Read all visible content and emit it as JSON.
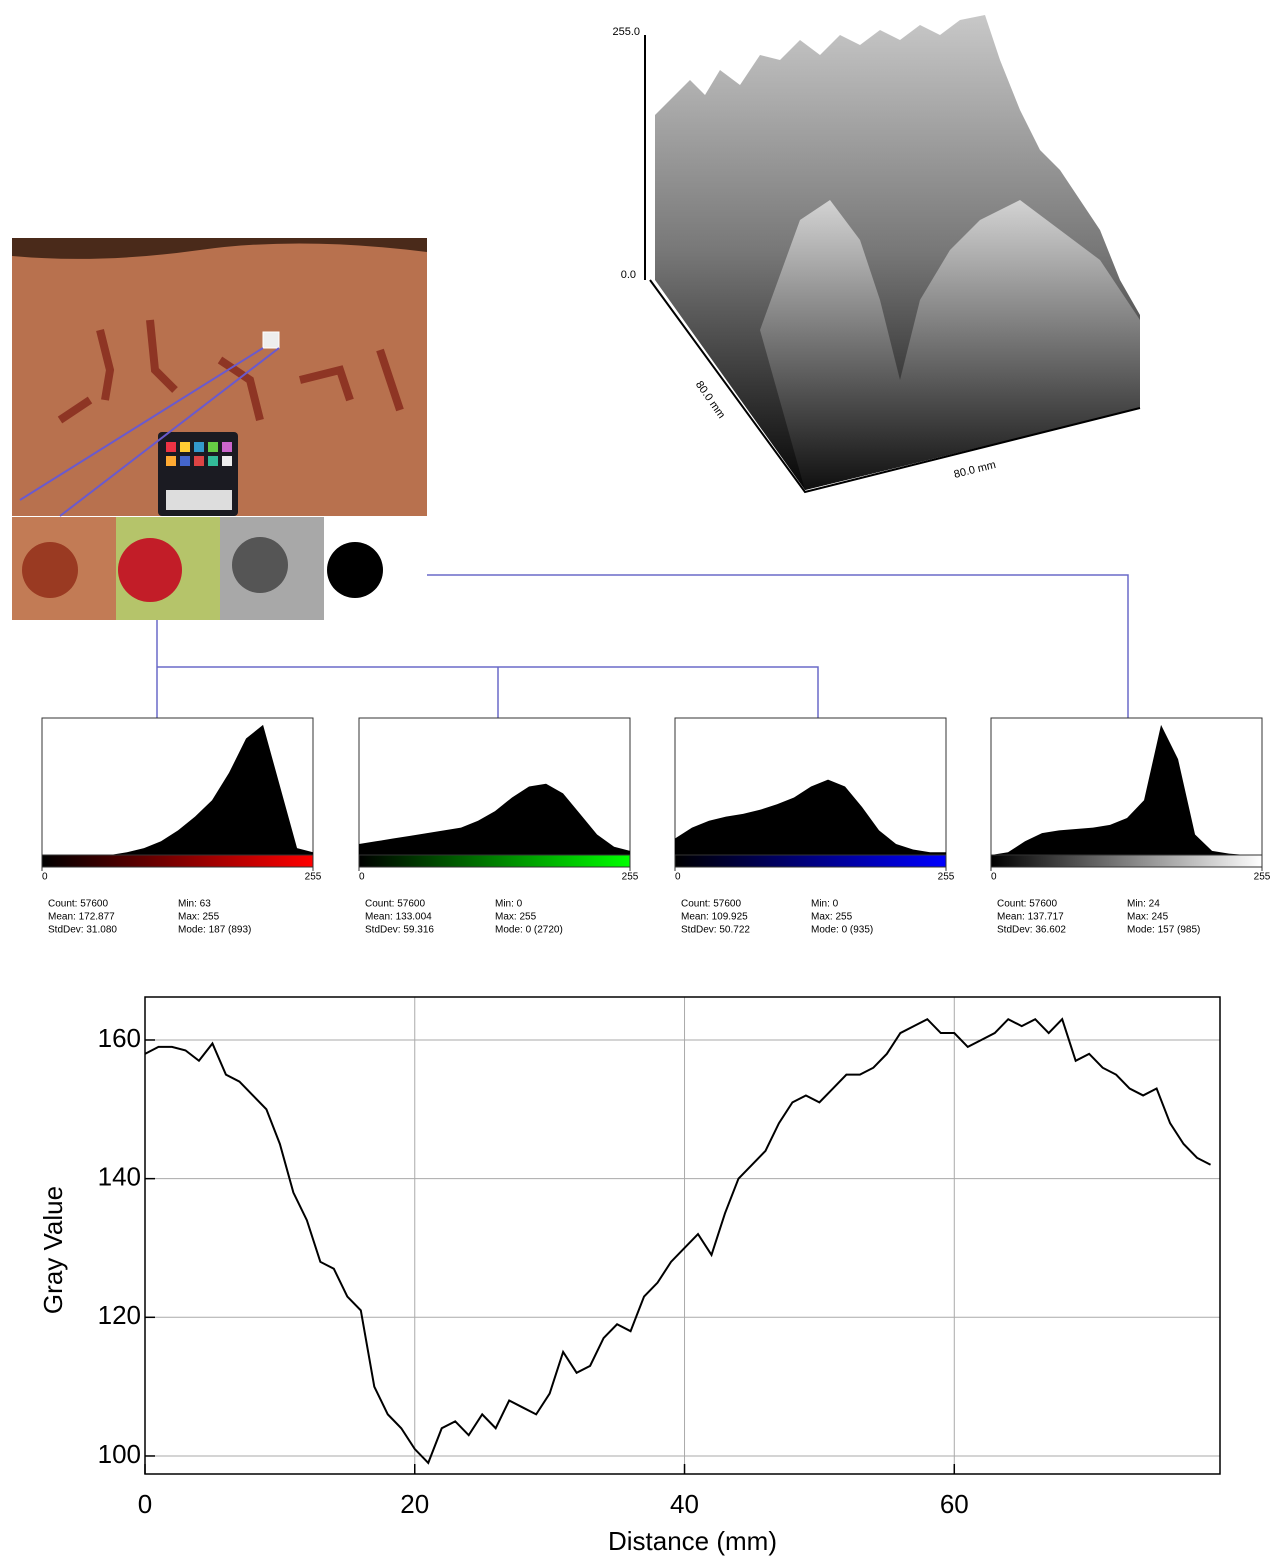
{
  "surface_plot": {
    "z_top": "255.0",
    "z_bottom": "0.0",
    "depth_label": "80.0 mm",
    "width_label": "80.0 mm"
  },
  "chart_data": [
    {
      "type": "area",
      "color": "#ff0000",
      "x": [
        0,
        16,
        32,
        48,
        64,
        80,
        96,
        112,
        128,
        144,
        160,
        176,
        192,
        208,
        224,
        240,
        255
      ],
      "values": [
        0,
        0,
        0,
        0,
        0,
        2,
        5,
        10,
        18,
        28,
        40,
        60,
        85,
        95,
        50,
        5,
        2
      ],
      "xlim": [
        0,
        255
      ],
      "xticks": [
        0,
        255
      ],
      "ylim": [
        0,
        100
      ],
      "stats": [
        "Count: 57600",
        "Mean: 172.877",
        "StdDev: 31.080",
        "Min: 63",
        "Max: 255",
        "Mode: 187 (893)"
      ]
    },
    {
      "type": "area",
      "color": "#00ff00",
      "x": [
        0,
        16,
        32,
        48,
        64,
        80,
        96,
        112,
        128,
        144,
        160,
        176,
        192,
        208,
        224,
        240,
        255
      ],
      "values": [
        8,
        10,
        12,
        14,
        16,
        18,
        20,
        25,
        32,
        42,
        50,
        52,
        45,
        30,
        15,
        6,
        3
      ],
      "xlim": [
        0,
        255
      ],
      "xticks": [
        0,
        255
      ],
      "ylim": [
        0,
        100
      ],
      "stats": [
        "Count: 57600",
        "Mean: 133.004",
        "StdDev: 59.316",
        "Min: 0",
        "Max: 255",
        "Mode: 0 (2720)"
      ]
    },
    {
      "type": "area",
      "color": "#0000ff",
      "x": [
        0,
        16,
        32,
        48,
        64,
        80,
        96,
        112,
        128,
        144,
        160,
        176,
        192,
        208,
        224,
        240,
        255
      ],
      "values": [
        12,
        20,
        25,
        28,
        30,
        33,
        37,
        42,
        50,
        55,
        50,
        35,
        18,
        8,
        4,
        2,
        2
      ],
      "xlim": [
        0,
        255
      ],
      "xticks": [
        0,
        255
      ],
      "ylim": [
        0,
        100
      ],
      "stats": [
        "Count: 57600",
        "Mean: 109.925",
        "StdDev: 50.722",
        "Min: 0",
        "Max: 255",
        "Mode: 0 (935)"
      ]
    },
    {
      "type": "area",
      "color": "#ffffff",
      "x": [
        0,
        16,
        32,
        48,
        64,
        80,
        96,
        112,
        128,
        144,
        160,
        176,
        192,
        208,
        224,
        240,
        255
      ],
      "values": [
        0,
        2,
        10,
        16,
        18,
        19,
        20,
        22,
        27,
        40,
        95,
        70,
        15,
        3,
        1,
        0,
        0
      ],
      "xlim": [
        0,
        255
      ],
      "xticks": [
        0,
        255
      ],
      "ylim": [
        0,
        100
      ],
      "stats": [
        "Count: 57600",
        "Mean: 137.717",
        "StdDev: 36.602",
        "Min: 24",
        "Max: 245",
        "Mode: 157 (985)"
      ]
    },
    {
      "type": "line",
      "x_label": "Distance (mm)",
      "y_label": "Gray Value",
      "color": "#000000",
      "grid": true,
      "x": [
        0,
        1,
        2,
        3,
        4,
        5,
        6,
        7,
        8,
        9,
        10,
        11,
        12,
        13,
        14,
        15,
        16,
        17,
        18,
        19,
        20,
        21,
        22,
        23,
        24,
        25,
        26,
        27,
        28,
        29,
        30,
        31,
        32,
        33,
        34,
        35,
        36,
        37,
        38,
        39,
        40,
        41,
        42,
        43,
        44,
        45,
        46,
        47,
        48,
        49,
        50,
        51,
        52,
        53,
        54,
        55,
        56,
        57,
        58,
        59,
        60,
        61,
        62,
        63,
        64,
        65,
        66,
        67,
        68,
        69,
        70,
        71,
        72,
        73,
        74,
        75,
        76,
        77,
        78,
        79
      ],
      "values": [
        158,
        159,
        159,
        158.5,
        157,
        159.5,
        155,
        154,
        152,
        150,
        145,
        138,
        134,
        128,
        127,
        123,
        121,
        110,
        106,
        104,
        101,
        99,
        104,
        105,
        103,
        106,
        104,
        108,
        107,
        106,
        109,
        115,
        112,
        113,
        117,
        119,
        118,
        123,
        125,
        128,
        130,
        132,
        129,
        135,
        140,
        142,
        144,
        148,
        151,
        152,
        151,
        153,
        155,
        155,
        156,
        158,
        161,
        162,
        163,
        161,
        161,
        159,
        160,
        161,
        163,
        162,
        163,
        161,
        163,
        157,
        158,
        156,
        155,
        153,
        152,
        153,
        148,
        145,
        143,
        142
      ],
      "xlim": [
        0,
        79.7
      ],
      "xticks": [
        0,
        20,
        40,
        60
      ],
      "ylim": [
        97.4,
        166.2
      ],
      "yticks": [
        100,
        120,
        140,
        160
      ]
    }
  ]
}
